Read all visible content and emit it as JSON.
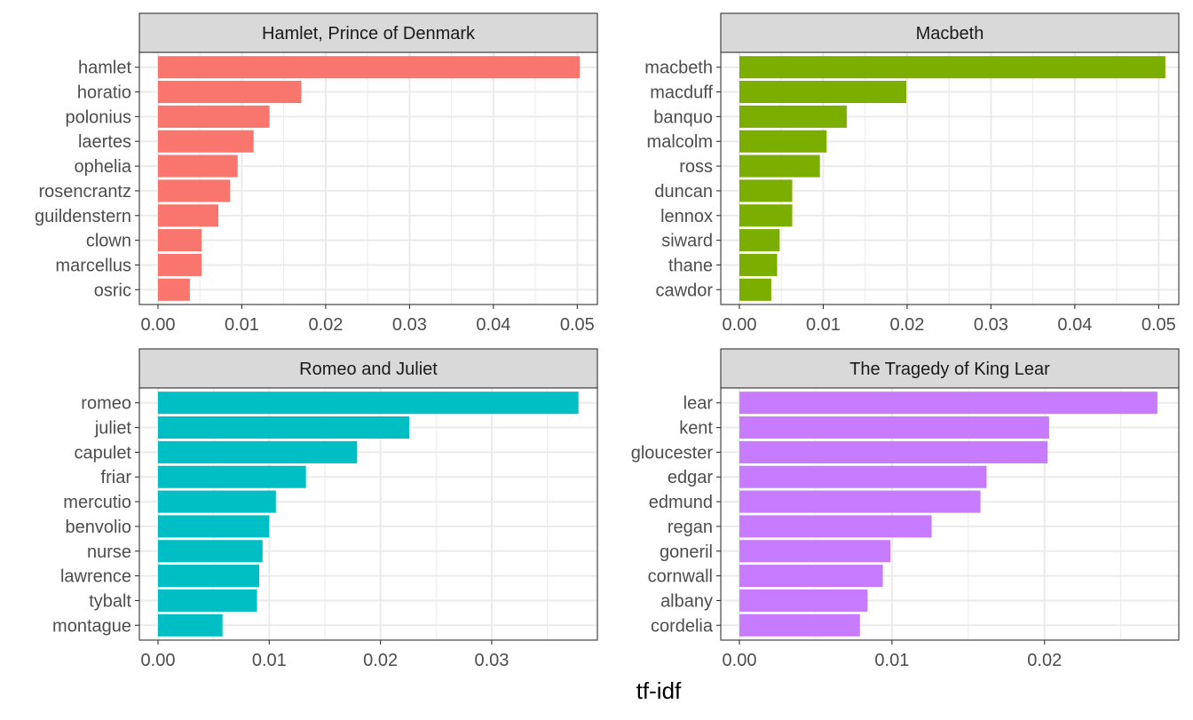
{
  "chart_data": {
    "type": "bar",
    "orientation": "horizontal",
    "xlabel": "tf-idf",
    "grid": true,
    "facets": [
      {
        "title": "Hamlet, Prince of Denmark",
        "color": "#F8766D",
        "categories": [
          "hamlet",
          "horatio",
          "polonius",
          "laertes",
          "ophelia",
          "rosencrantz",
          "guildenstern",
          "clown",
          "marcellus",
          "osric"
        ],
        "values": [
          0.0503,
          0.0171,
          0.0133,
          0.0114,
          0.0095,
          0.0086,
          0.0072,
          0.0052,
          0.0052,
          0.0038
        ],
        "xlim": [
          0,
          0.0524
        ],
        "xticks": [
          0.0,
          0.01,
          0.02,
          0.03,
          0.04,
          0.05
        ],
        "xtick_labels": [
          "0.00",
          "0.01",
          "0.02",
          "0.03",
          "0.04",
          "0.05"
        ]
      },
      {
        "title": "Macbeth",
        "color": "#7CAE00",
        "categories": [
          "macbeth",
          "macduff",
          "banquo",
          "malcolm",
          "ross",
          "duncan",
          "lennox",
          "siward",
          "thane",
          "cawdor"
        ],
        "values": [
          0.0508,
          0.0199,
          0.0128,
          0.0104,
          0.0096,
          0.0063,
          0.0063,
          0.0048,
          0.0045,
          0.0038
        ],
        "xlim": [
          0,
          0.0524
        ],
        "xticks": [
          0.0,
          0.01,
          0.02,
          0.03,
          0.04,
          0.05
        ],
        "xtick_labels": [
          "0.00",
          "0.01",
          "0.02",
          "0.03",
          "0.04",
          "0.05"
        ]
      },
      {
        "title": "Romeo and Juliet",
        "color": "#00BFC4",
        "categories": [
          "romeo",
          "juliet",
          "capulet",
          "friar",
          "mercutio",
          "benvolio",
          "nurse",
          "lawrence",
          "tybalt",
          "montague"
        ],
        "values": [
          0.0378,
          0.0226,
          0.0179,
          0.0133,
          0.0106,
          0.01,
          0.0094,
          0.0091,
          0.0089,
          0.0058
        ],
        "xlim": [
          0,
          0.0395
        ],
        "xticks": [
          0.0,
          0.01,
          0.02,
          0.03
        ],
        "xtick_labels": [
          "0.00",
          "0.01",
          "0.02",
          "0.03"
        ]
      },
      {
        "title": "The Tragedy of King Lear",
        "color": "#C77CFF",
        "categories": [
          "lear",
          "kent",
          "gloucester",
          "edgar",
          "edmund",
          "regan",
          "goneril",
          "cornwall",
          "albany",
          "cordelia"
        ],
        "values": [
          0.0274,
          0.0203,
          0.0202,
          0.0162,
          0.0158,
          0.0126,
          0.0099,
          0.0094,
          0.0084,
          0.0079
        ],
        "xlim": [
          0,
          0.0288
        ],
        "xticks": [
          0.0,
          0.01,
          0.02
        ],
        "xtick_labels": [
          "0.00",
          "0.01",
          "0.02"
        ]
      }
    ]
  }
}
